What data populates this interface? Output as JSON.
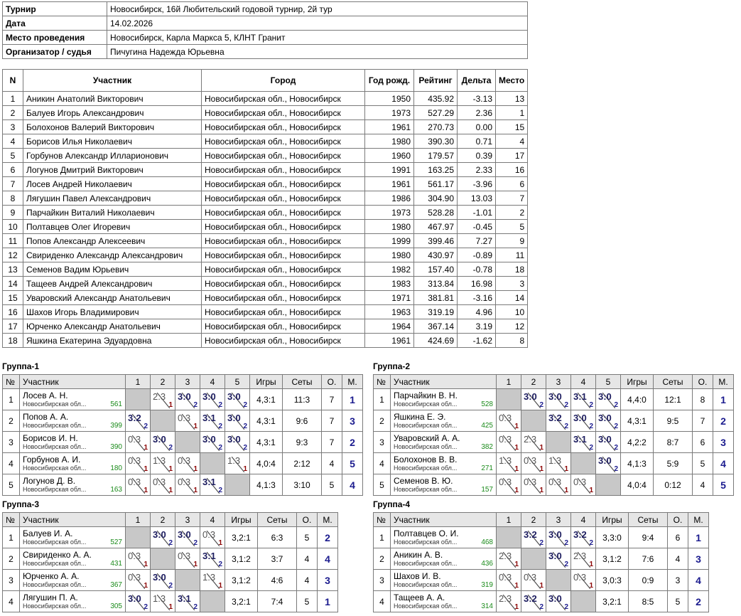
{
  "info": [
    [
      "Турнир",
      "Новосибирск, 16й Любительский годовой турнир, 2й тур"
    ],
    [
      "Дата",
      "14.02.2026"
    ],
    [
      "Место проведения",
      "Новосибирск, Карла Маркса 5, КЛНТ Гранит"
    ],
    [
      "Организатор / судья",
      "Пичугина Надежда Юрьевна"
    ]
  ],
  "players": {
    "headers": [
      "N",
      "Участник",
      "Город",
      "Год рожд.",
      "Рейтинг",
      "Дельта",
      "Место"
    ],
    "rows": [
      [
        1,
        "Аникин Анатолий Викторович",
        "Новосибирская обл., Новосибирск",
        1950,
        "435.92",
        "-3.13",
        13
      ],
      [
        2,
        "Балуев Игорь Александрович",
        "Новосибирская обл., Новосибирск",
        1973,
        "527.29",
        "2.36",
        1
      ],
      [
        3,
        "Болохонов Валерий Викторович",
        "Новосибирская обл., Новосибирск",
        1961,
        "270.73",
        "0.00",
        15
      ],
      [
        4,
        "Борисов Илья Николаевич",
        "Новосибирская обл., Новосибирск",
        1980,
        "390.30",
        "0.71",
        4
      ],
      [
        5,
        "Горбунов Александр Илларионович",
        "Новосибирская обл., Новосибирск",
        1960,
        "179.57",
        "0.39",
        17
      ],
      [
        6,
        "Логунов Дмитрий Викторович",
        "Новосибирская обл., Новосибирск",
        1991,
        "163.25",
        "2.33",
        16
      ],
      [
        7,
        "Лосев Андрей Николаевич",
        "Новосибирская обл., Новосибирск",
        1961,
        "561.17",
        "-3.96",
        6
      ],
      [
        8,
        "Лягушин Павел Александрович",
        "Новосибирская обл., Новосибирск",
        1986,
        "304.90",
        "13.03",
        7
      ],
      [
        9,
        "Парчайкин Виталий Николаевич",
        "Новосибирская обл., Новосибирск",
        1973,
        "528.28",
        "-1.01",
        2
      ],
      [
        10,
        "Полтавцев Олег Игоревич",
        "Новосибирская обл., Новосибирск",
        1980,
        "467.97",
        "-0.45",
        5
      ],
      [
        11,
        "Попов Александр Алексеевич",
        "Новосибирская обл., Новосибирск",
        1999,
        "399.46",
        "7.27",
        9
      ],
      [
        12,
        "Свириденко Александр Александрович",
        "Новосибирская обл., Новосибирск",
        1980,
        "430.97",
        "-0.89",
        11
      ],
      [
        13,
        "Семенов Вадим Юрьевич",
        "Новосибирская обл., Новосибирск",
        1982,
        "157.40",
        "-0.78",
        18
      ],
      [
        14,
        "Тащеев Андрей Александрович",
        "Новосибирская обл., Новосибирск",
        1983,
        "313.84",
        "16.98",
        3
      ],
      [
        15,
        "Уваровский Александр Анатольевич",
        "Новосибирская обл., Новосибирск",
        1971,
        "381.81",
        "-3.16",
        14
      ],
      [
        16,
        "Шахов Игорь Владимирович",
        "Новосибирская обл., Новосибирск",
        1963,
        "319.19",
        "4.96",
        10
      ],
      [
        17,
        "Юрченко Александр Анатольевич",
        "Новосибирская обл., Новосибирск",
        1964,
        "367.14",
        "3.19",
        12
      ],
      [
        18,
        "Яшкина Екатерина Эдуардовна",
        "Новосибирская обл., Новосибирск",
        1961,
        "424.69",
        "-1.62",
        8
      ]
    ]
  },
  "groups": [
    {
      "title": "Группа-1",
      "headers": [
        "№",
        "Участник",
        "1",
        "2",
        "3",
        "4",
        "5",
        "Игры",
        "Сеты",
        "О.",
        "М."
      ],
      "rows": [
        {
          "n": 1,
          "name": "Лосев А. Н.",
          "city": "Новосибирская обл...",
          "rating": 561,
          "results": [
            null,
            {
              "score": "2:3",
              "pts": 1
            },
            {
              "score": "3:0",
              "pts": 2
            },
            {
              "score": "3:0",
              "pts": 2
            },
            {
              "score": "3:0",
              "pts": 2
            }
          ],
          "games": "4,3:1",
          "sets": "11:3",
          "points": 7,
          "place": 1
        },
        {
          "n": 2,
          "name": "Попов А. А.",
          "city": "Новосибирская обл...",
          "rating": 399,
          "results": [
            {
              "score": "3:2",
              "pts": 2
            },
            null,
            {
              "score": "0:3",
              "pts": 1
            },
            {
              "score": "3:1",
              "pts": 2
            },
            {
              "score": "3:0",
              "pts": 2
            }
          ],
          "games": "4,3:1",
          "sets": "9:6",
          "points": 7,
          "place": 3
        },
        {
          "n": 3,
          "name": "Борисов И. Н.",
          "city": "Новосибирская обл...",
          "rating": 390,
          "results": [
            {
              "score": "0:3",
              "pts": 1
            },
            {
              "score": "3:0",
              "pts": 2
            },
            null,
            {
              "score": "3:0",
              "pts": 2
            },
            {
              "score": "3:0",
              "pts": 2
            }
          ],
          "games": "4,3:1",
          "sets": "9:3",
          "points": 7,
          "place": 2
        },
        {
          "n": 4,
          "name": "Горбунов А. И.",
          "city": "Новосибирская обл...",
          "rating": 180,
          "results": [
            {
              "score": "0:3",
              "pts": 1
            },
            {
              "score": "1:3",
              "pts": 1
            },
            {
              "score": "0:3",
              "pts": 1
            },
            null,
            {
              "score": "1:3",
              "pts": 1
            }
          ],
          "games": "4,0:4",
          "sets": "2:12",
          "points": 4,
          "place": 5
        },
        {
          "n": 5,
          "name": "Логунов Д. В.",
          "city": "Новосибирская обл...",
          "rating": 163,
          "results": [
            {
              "score": "0:3",
              "pts": 1
            },
            {
              "score": "0:3",
              "pts": 1
            },
            {
              "score": "0:3",
              "pts": 1
            },
            {
              "score": "3:1",
              "pts": 2
            },
            null
          ],
          "games": "4,1:3",
          "sets": "3:10",
          "points": 5,
          "place": 4
        }
      ]
    },
    {
      "title": "Группа-2",
      "headers": [
        "№",
        "Участник",
        "1",
        "2",
        "3",
        "4",
        "5",
        "Игры",
        "Сеты",
        "О.",
        "М."
      ],
      "rows": [
        {
          "n": 1,
          "name": "Парчайкин В. Н.",
          "city": "Новосибирская обл...",
          "rating": 528,
          "results": [
            null,
            {
              "score": "3:0",
              "pts": 2
            },
            {
              "score": "3:0",
              "pts": 2
            },
            {
              "score": "3:1",
              "pts": 2
            },
            {
              "score": "3:0",
              "pts": 2
            }
          ],
          "games": "4,4:0",
          "sets": "12:1",
          "points": 8,
          "place": 1
        },
        {
          "n": 2,
          "name": "Яшкина Е. Э.",
          "city": "Новосибирская обл...",
          "rating": 425,
          "results": [
            {
              "score": "0:3",
              "pts": 1
            },
            null,
            {
              "score": "3:2",
              "pts": 2
            },
            {
              "score": "3:0",
              "pts": 2
            },
            {
              "score": "3:0",
              "pts": 2
            }
          ],
          "games": "4,3:1",
          "sets": "9:5",
          "points": 7,
          "place": 2
        },
        {
          "n": 3,
          "name": "Уваровский А. А.",
          "city": "Новосибирская обл...",
          "rating": 382,
          "results": [
            {
              "score": "0:3",
              "pts": 1
            },
            {
              "score": "2:3",
              "pts": 1
            },
            null,
            {
              "score": "3:1",
              "pts": 2
            },
            {
              "score": "3:0",
              "pts": 2
            }
          ],
          "games": "4,2:2",
          "sets": "8:7",
          "points": 6,
          "place": 3
        },
        {
          "n": 4,
          "name": "Болохонов В. В.",
          "city": "Новосибирская обл...",
          "rating": 271,
          "results": [
            {
              "score": "1:3",
              "pts": 1
            },
            {
              "score": "0:3",
              "pts": 1
            },
            {
              "score": "1:3",
              "pts": 1
            },
            null,
            {
              "score": "3:0",
              "pts": 2
            }
          ],
          "games": "4,1:3",
          "sets": "5:9",
          "points": 5,
          "place": 4
        },
        {
          "n": 5,
          "name": "Семенов В. Ю.",
          "city": "Новосибирская обл...",
          "rating": 157,
          "results": [
            {
              "score": "0:3",
              "pts": 1
            },
            {
              "score": "0:3",
              "pts": 1
            },
            {
              "score": "0:3",
              "pts": 1
            },
            {
              "score": "0:3",
              "pts": 1
            },
            null
          ],
          "games": "4,0:4",
          "sets": "0:12",
          "points": 4,
          "place": 5
        }
      ]
    },
    {
      "title": "Группа-3",
      "headers": [
        "№",
        "Участник",
        "1",
        "2",
        "3",
        "4",
        "Игры",
        "Сеты",
        "О.",
        "М."
      ],
      "rows": [
        {
          "n": 1,
          "name": "Балуев И. А.",
          "city": "Новосибирская обл...",
          "rating": 527,
          "results": [
            null,
            {
              "score": "3:0",
              "pts": 2
            },
            {
              "score": "3:0",
              "pts": 2
            },
            {
              "score": "0:3",
              "pts": 1
            }
          ],
          "games": "3,2:1",
          "sets": "6:3",
          "points": 5,
          "place": 2
        },
        {
          "n": 2,
          "name": "Свириденко А. А.",
          "city": "Новосибирская обл...",
          "rating": 431,
          "results": [
            {
              "score": "0:3",
              "pts": 1
            },
            null,
            {
              "score": "0:3",
              "pts": 1
            },
            {
              "score": "3:1",
              "pts": 2
            }
          ],
          "games": "3,1:2",
          "sets": "3:7",
          "points": 4,
          "place": 4
        },
        {
          "n": 3,
          "name": "Юрченко А. А.",
          "city": "Новосибирская обл...",
          "rating": 367,
          "results": [
            {
              "score": "0:3",
              "pts": 1
            },
            {
              "score": "3:0",
              "pts": 2
            },
            null,
            {
              "score": "1:3",
              "pts": 1
            }
          ],
          "games": "3,1:2",
          "sets": "4:6",
          "points": 4,
          "place": 3
        },
        {
          "n": 4,
          "name": "Лягушин П. А.",
          "city": "Новосибирская обл...",
          "rating": 305,
          "results": [
            {
              "score": "3:0",
              "pts": 2
            },
            {
              "score": "1:3",
              "pts": 1
            },
            {
              "score": "3:1",
              "pts": 2
            },
            null
          ],
          "games": "3,2:1",
          "sets": "7:4",
          "points": 5,
          "place": 1
        }
      ]
    },
    {
      "title": "Группа-4",
      "headers": [
        "№",
        "Участник",
        "1",
        "2",
        "3",
        "4",
        "Игры",
        "Сеты",
        "О.",
        "М."
      ],
      "rows": [
        {
          "n": 1,
          "name": "Полтавцев О. И.",
          "city": "Новосибирская обл...",
          "rating": 468,
          "results": [
            null,
            {
              "score": "3:2",
              "pts": 2
            },
            {
              "score": "3:0",
              "pts": 2
            },
            {
              "score": "3:2",
              "pts": 2
            }
          ],
          "games": "3,3:0",
          "sets": "9:4",
          "points": 6,
          "place": 1
        },
        {
          "n": 2,
          "name": "Аникин А. В.",
          "city": "Новосибирская обл...",
          "rating": 436,
          "results": [
            {
              "score": "2:3",
              "pts": 1
            },
            null,
            {
              "score": "3:0",
              "pts": 2
            },
            {
              "score": "2:3",
              "pts": 1
            }
          ],
          "games": "3,1:2",
          "sets": "7:6",
          "points": 4,
          "place": 3
        },
        {
          "n": 3,
          "name": "Шахов И. В.",
          "city": "Новосибирская обл...",
          "rating": 319,
          "results": [
            {
              "score": "0:3",
              "pts": 1
            },
            {
              "score": "0:3",
              "pts": 1
            },
            null,
            {
              "score": "0:3",
              "pts": 1
            }
          ],
          "games": "3,0:3",
          "sets": "0:9",
          "points": 3,
          "place": 4
        },
        {
          "n": 4,
          "name": "Тащеев А. А.",
          "city": "Новосибирская обл...",
          "rating": 314,
          "results": [
            {
              "score": "2:3",
              "pts": 1
            },
            {
              "score": "3:2",
              "pts": 2
            },
            {
              "score": "3:0",
              "pts": 2
            },
            null
          ],
          "games": "3,2:1",
          "sets": "8:5",
          "points": 5,
          "place": 2
        }
      ]
    }
  ]
}
